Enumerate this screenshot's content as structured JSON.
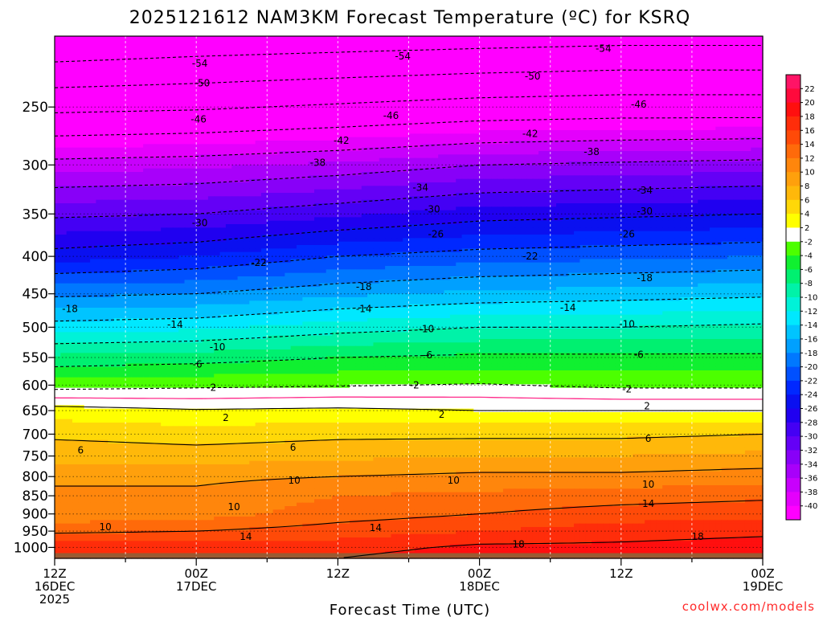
{
  "chart_data": {
    "type": "heatmap",
    "title": "2025121612 NAM3KM Forecast Temperature (ºC) for KSRQ",
    "xlabel": "Forecast Time (UTC)",
    "ylabel": "",
    "credit": "coolwx.com/models",
    "x_range_hours": [
      0,
      60
    ],
    "y_range_hpa": [
      200,
      1035
    ],
    "y_scale": "log-pressure",
    "y_ticks": [
      "250",
      "300",
      "350",
      "400",
      "450",
      "500",
      "550",
      "600",
      "650",
      "700",
      "750",
      "800",
      "850",
      "900",
      "950",
      "1000"
    ],
    "x_ticks": [
      {
        "hour": 0,
        "l1": "12Z",
        "l2": "16DEC",
        "l3": "2025"
      },
      {
        "hour": 12,
        "l1": "00Z",
        "l2": "17DEC",
        "l3": ""
      },
      {
        "hour": 24,
        "l1": "12Z",
        "l2": "",
        "l3": ""
      },
      {
        "hour": 36,
        "l1": "00Z",
        "l2": "18DEC",
        "l3": ""
      },
      {
        "hour": 48,
        "l1": "12Z",
        "l2": "",
        "l3": ""
      },
      {
        "hour": 60,
        "l1": "00Z",
        "l2": "19DEC",
        "l3": ""
      }
    ],
    "colorbar": {
      "ticks": [
        "22",
        "20",
        "18",
        "16",
        "14",
        "12",
        "10",
        "8",
        "6",
        "4",
        "2",
        "-2",
        "-4",
        "-6",
        "-8",
        "-10",
        "-12",
        "-14",
        "-16",
        "-18",
        "-20",
        "-22",
        "-24",
        "-26",
        "-28",
        "-30",
        "-32",
        "-34",
        "-36",
        "-38",
        "-40"
      ],
      "bins": [
        {
          "lo": 22,
          "hi": 24,
          "color": "#ff1466"
        },
        {
          "lo": 20,
          "hi": 22,
          "color": "#ff0a3c"
        },
        {
          "lo": 18,
          "hi": 20,
          "color": "#ff0f0f"
        },
        {
          "lo": 16,
          "hi": 18,
          "color": "#ff2d0a"
        },
        {
          "lo": 14,
          "hi": 16,
          "color": "#ff4a08"
        },
        {
          "lo": 12,
          "hi": 14,
          "color": "#ff6a0a"
        },
        {
          "lo": 10,
          "hi": 12,
          "color": "#ff860c"
        },
        {
          "lo": 8,
          "hi": 10,
          "color": "#ffa00c"
        },
        {
          "lo": 6,
          "hi": 8,
          "color": "#ffb80a"
        },
        {
          "lo": 4,
          "hi": 6,
          "color": "#ffd808"
        },
        {
          "lo": 2,
          "hi": 4,
          "color": "#ffff00"
        },
        {
          "lo": -2,
          "hi": 2,
          "color": "#ffffff"
        },
        {
          "lo": -4,
          "hi": -2,
          "color": "#4cff00"
        },
        {
          "lo": -6,
          "hi": -4,
          "color": "#10f030"
        },
        {
          "lo": -8,
          "hi": -6,
          "color": "#00f070"
        },
        {
          "lo": -10,
          "hi": -8,
          "color": "#00f2a8"
        },
        {
          "lo": -12,
          "hi": -10,
          "color": "#00f2d8"
        },
        {
          "lo": -14,
          "hi": -12,
          "color": "#00e8ff"
        },
        {
          "lo": -16,
          "hi": -14,
          "color": "#00c4ff"
        },
        {
          "lo": -18,
          "hi": -16,
          "color": "#00a0ff"
        },
        {
          "lo": -20,
          "hi": -18,
          "color": "#0078ff"
        },
        {
          "lo": -22,
          "hi": -20,
          "color": "#0050ff"
        },
        {
          "lo": -24,
          "hi": -22,
          "color": "#0028ff"
        },
        {
          "lo": -26,
          "hi": -24,
          "color": "#0a10f0"
        },
        {
          "lo": -28,
          "hi": -26,
          "color": "#2000f0"
        },
        {
          "lo": -30,
          "hi": -28,
          "color": "#4400f4"
        },
        {
          "lo": -32,
          "hi": -30,
          "color": "#6400f6"
        },
        {
          "lo": -34,
          "hi": -32,
          "color": "#8800f8"
        },
        {
          "lo": -36,
          "hi": -34,
          "color": "#a800fa"
        },
        {
          "lo": -38,
          "hi": -36,
          "color": "#c800fc"
        },
        {
          "lo": -40,
          "hi": -38,
          "color": "#e400fc"
        },
        {
          "lo": -70,
          "hi": -40,
          "color": "#ff00ff"
        }
      ]
    },
    "ground_color": "#9a5a32",
    "zero_line_color": "#ff2a8a",
    "profile_hours": [
      0,
      12,
      24,
      36,
      48,
      60
    ],
    "profiles": [
      [
        {
          "p": 200,
          "t": -58
        },
        {
          "p": 250,
          "t": -47
        },
        {
          "p": 300,
          "t": -37
        },
        {
          "p": 350,
          "t": -30.5
        },
        {
          "p": 400,
          "t": -25
        },
        {
          "p": 450,
          "t": -18.5
        },
        {
          "p": 500,
          "t": -13
        },
        {
          "p": 550,
          "t": -7.5
        },
        {
          "p": 600,
          "t": -3
        },
        {
          "p": 650,
          "t": 3
        },
        {
          "p": 700,
          "t": 5.5
        },
        {
          "p": 750,
          "t": 7.5
        },
        {
          "p": 800,
          "t": 9
        },
        {
          "p": 850,
          "t": 11
        },
        {
          "p": 900,
          "t": 10.5
        },
        {
          "p": 950,
          "t": 13.5
        },
        {
          "p": 1000,
          "t": 17.5
        },
        {
          "p": 1035,
          "t": 18
        }
      ],
      [
        {
          "p": 200,
          "t": -57
        },
        {
          "p": 250,
          "t": -46.5
        },
        {
          "p": 300,
          "t": -36.5
        },
        {
          "p": 350,
          "t": -30
        },
        {
          "p": 400,
          "t": -24
        },
        {
          "p": 450,
          "t": -18
        },
        {
          "p": 500,
          "t": -12.5
        },
        {
          "p": 550,
          "t": -7
        },
        {
          "p": 600,
          "t": -2.5
        },
        {
          "p": 650,
          "t": 2.2
        },
        {
          "p": 700,
          "t": 5
        },
        {
          "p": 750,
          "t": 7
        },
        {
          "p": 800,
          "t": 9.5
        },
        {
          "p": 850,
          "t": 10.5
        },
        {
          "p": 900,
          "t": 11
        },
        {
          "p": 950,
          "t": 14
        },
        {
          "p": 1000,
          "t": 17.5
        },
        {
          "p": 1035,
          "t": 18
        }
      ],
      [
        {
          "p": 200,
          "t": -56.5
        },
        {
          "p": 250,
          "t": -45.5
        },
        {
          "p": 300,
          "t": -35.5
        },
        {
          "p": 350,
          "t": -28.5
        },
        {
          "p": 400,
          "t": -22
        },
        {
          "p": 450,
          "t": -16.5
        },
        {
          "p": 500,
          "t": -11
        },
        {
          "p": 550,
          "t": -6
        },
        {
          "p": 600,
          "t": -2.2
        },
        {
          "p": 650,
          "t": 2.5
        },
        {
          "p": 700,
          "t": 5.5
        },
        {
          "p": 750,
          "t": 7.5
        },
        {
          "p": 800,
          "t": 10
        },
        {
          "p": 850,
          "t": 12
        },
        {
          "p": 900,
          "t": 13
        },
        {
          "p": 950,
          "t": 15
        },
        {
          "p": 1000,
          "t": 17
        },
        {
          "p": 1035,
          "t": 18
        }
      ],
      [
        {
          "p": 200,
          "t": -56
        },
        {
          "p": 250,
          "t": -44.5
        },
        {
          "p": 300,
          "t": -34
        },
        {
          "p": 350,
          "t": -27
        },
        {
          "p": 400,
          "t": -21
        },
        {
          "p": 450,
          "t": -15.5
        },
        {
          "p": 500,
          "t": -10
        },
        {
          "p": 550,
          "t": -5.5
        },
        {
          "p": 600,
          "t": -1.8
        },
        {
          "p": 650,
          "t": 2
        },
        {
          "p": 700,
          "t": 5.5
        },
        {
          "p": 750,
          "t": 8
        },
        {
          "p": 800,
          "t": 10.5
        },
        {
          "p": 850,
          "t": 12.5
        },
        {
          "p": 900,
          "t": 14
        },
        {
          "p": 950,
          "t": 16
        },
        {
          "p": 1000,
          "t": 18.5
        },
        {
          "p": 1035,
          "t": 19.5
        }
      ],
      [
        {
          "p": 200,
          "t": -55.5
        },
        {
          "p": 250,
          "t": -44
        },
        {
          "p": 300,
          "t": -33.5
        },
        {
          "p": 350,
          "t": -26.5
        },
        {
          "p": 400,
          "t": -20.5
        },
        {
          "p": 450,
          "t": -15
        },
        {
          "p": 500,
          "t": -10
        },
        {
          "p": 550,
          "t": -5.5
        },
        {
          "p": 600,
          "t": -2.5
        },
        {
          "p": 650,
          "t": 2
        },
        {
          "p": 700,
          "t": 5.5
        },
        {
          "p": 750,
          "t": 8
        },
        {
          "p": 800,
          "t": 10.5
        },
        {
          "p": 850,
          "t": 13
        },
        {
          "p": 900,
          "t": 15
        },
        {
          "p": 950,
          "t": 17
        },
        {
          "p": 1000,
          "t": 18.5
        },
        {
          "p": 1035,
          "t": 19.5
        }
      ],
      [
        {
          "p": 200,
          "t": -55.5
        },
        {
          "p": 250,
          "t": -44
        },
        {
          "p": 300,
          "t": -33
        },
        {
          "p": 350,
          "t": -26
        },
        {
          "p": 400,
          "t": -20
        },
        {
          "p": 450,
          "t": -14.5
        },
        {
          "p": 500,
          "t": -9.5
        },
        {
          "p": 550,
          "t": -5.5
        },
        {
          "p": 600,
          "t": -2.5
        },
        {
          "p": 650,
          "t": 2
        },
        {
          "p": 700,
          "t": 6
        },
        {
          "p": 750,
          "t": 8.5
        },
        {
          "p": 800,
          "t": 11
        },
        {
          "p": 850,
          "t": 13.5
        },
        {
          "p": 900,
          "t": 15.5
        },
        {
          "p": 950,
          "t": 17.5
        },
        {
          "p": 1000,
          "t": 19
        },
        {
          "p": 1035,
          "t": 19.5
        }
      ]
    ],
    "contour_labels": [
      {
        "hour": 12.3,
        "p": 218,
        "text": "-54"
      },
      {
        "hour": 29.5,
        "p": 213,
        "text": "-54"
      },
      {
        "hour": 46.5,
        "p": 208,
        "text": "-54"
      },
      {
        "hour": 12.5,
        "p": 232,
        "text": "-50"
      },
      {
        "hour": 40.5,
        "p": 227,
        "text": "-50"
      },
      {
        "hour": 12.2,
        "p": 260,
        "text": "-46"
      },
      {
        "hour": 28.5,
        "p": 257,
        "text": "-46"
      },
      {
        "hour": 49.5,
        "p": 248,
        "text": "-46"
      },
      {
        "hour": 24.3,
        "p": 278,
        "text": "-42"
      },
      {
        "hour": 40.3,
        "p": 272,
        "text": "-42"
      },
      {
        "hour": 22.3,
        "p": 298,
        "text": "-38"
      },
      {
        "hour": 45.5,
        "p": 288,
        "text": "-38"
      },
      {
        "hour": 31,
        "p": 322,
        "text": "-34"
      },
      {
        "hour": 50,
        "p": 325,
        "text": "-34"
      },
      {
        "hour": 32,
        "p": 345,
        "text": "-30"
      },
      {
        "hour": 50,
        "p": 347,
        "text": "-30"
      },
      {
        "hour": 12.3,
        "p": 360,
        "text": "-30"
      },
      {
        "hour": 32.3,
        "p": 373,
        "text": "-26"
      },
      {
        "hour": 48.5,
        "p": 373,
        "text": "-26"
      },
      {
        "hour": 17.3,
        "p": 408,
        "text": "-22"
      },
      {
        "hour": 40.3,
        "p": 400,
        "text": "-22"
      },
      {
        "hour": 26.2,
        "p": 440,
        "text": "-18"
      },
      {
        "hour": 50,
        "p": 428,
        "text": "-18"
      },
      {
        "hour": 1.3,
        "p": 472,
        "text": "-18"
      },
      {
        "hour": 10.2,
        "p": 496,
        "text": "-14"
      },
      {
        "hour": 26.2,
        "p": 472,
        "text": "-14"
      },
      {
        "hour": 43.5,
        "p": 470,
        "text": "-14"
      },
      {
        "hour": 13.8,
        "p": 532,
        "text": "-10"
      },
      {
        "hour": 31.5,
        "p": 503,
        "text": "-10"
      },
      {
        "hour": 48.5,
        "p": 495,
        "text": "-10"
      },
      {
        "hour": 12.1,
        "p": 562,
        "text": "-6"
      },
      {
        "hour": 31.6,
        "p": 546,
        "text": "-6"
      },
      {
        "hour": 49.5,
        "p": 545,
        "text": "-6"
      },
      {
        "hour": 13.3,
        "p": 605,
        "text": "-2"
      },
      {
        "hour": 30.5,
        "p": 600,
        "text": "-2"
      },
      {
        "hour": 48.5,
        "p": 608,
        "text": "-2"
      },
      {
        "hour": 14.5,
        "p": 665,
        "text": "2"
      },
      {
        "hour": 32.8,
        "p": 658,
        "text": "2"
      },
      {
        "hour": 50.2,
        "p": 641,
        "text": "2"
      },
      {
        "hour": 2.2,
        "p": 737,
        "text": "6"
      },
      {
        "hour": 20.2,
        "p": 730,
        "text": "6"
      },
      {
        "hour": 50.3,
        "p": 710,
        "text": "6"
      },
      {
        "hour": 20.3,
        "p": 810,
        "text": "10"
      },
      {
        "hour": 33.8,
        "p": 810,
        "text": "10"
      },
      {
        "hour": 50.3,
        "p": 820,
        "text": "10"
      },
      {
        "hour": 15.2,
        "p": 880,
        "text": "10"
      },
      {
        "hour": 4.3,
        "p": 938,
        "text": "10"
      },
      {
        "hour": 16.2,
        "p": 967,
        "text": "14"
      },
      {
        "hour": 27.2,
        "p": 940,
        "text": "14"
      },
      {
        "hour": 50.3,
        "p": 872,
        "text": "14"
      },
      {
        "hour": 39.3,
        "p": 990,
        "text": "18"
      },
      {
        "hour": 54.5,
        "p": 967,
        "text": "18"
      }
    ]
  }
}
